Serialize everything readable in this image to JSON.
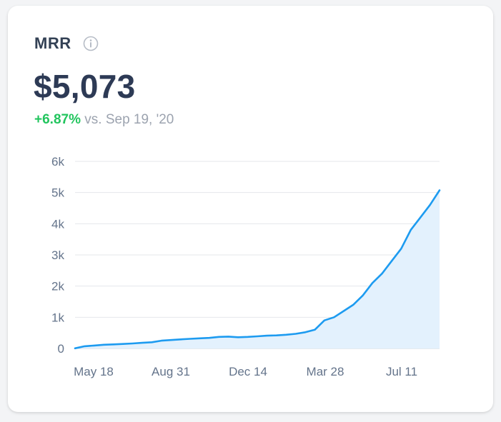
{
  "metric": {
    "title": "MRR",
    "value": "$5,073",
    "change": "+6.87%",
    "comparison": "vs. Sep 19, '20"
  },
  "icons": {
    "info": "info-circle-icon"
  },
  "colors": {
    "line": "#1d9bf0",
    "area": "#e3f1fd",
    "grid": "#e5e7eb",
    "positive": "#22c55e"
  },
  "chart_data": {
    "type": "area",
    "ylim": [
      0,
      6000
    ],
    "y_ticks": [
      0,
      1000,
      2000,
      3000,
      4000,
      5000,
      6000
    ],
    "y_tick_labels": [
      "0",
      "1k",
      "2k",
      "3k",
      "4k",
      "5k",
      "6k"
    ],
    "x_tick_labels": [
      "May 18",
      "Aug 31",
      "Dec 14",
      "Mar 28",
      "Jul 11"
    ],
    "grid": true,
    "legend": "none",
    "series": [
      {
        "values": [
          5,
          70,
          95,
          120,
          130,
          145,
          160,
          180,
          200,
          250,
          270,
          290,
          310,
          325,
          340,
          370,
          380,
          360,
          370,
          390,
          410,
          420,
          440,
          470,
          520,
          600,
          900,
          1000,
          1200,
          1400,
          1700,
          2100,
          2400,
          2800,
          3200,
          3800,
          4200,
          4600,
          5073
        ]
      }
    ]
  }
}
